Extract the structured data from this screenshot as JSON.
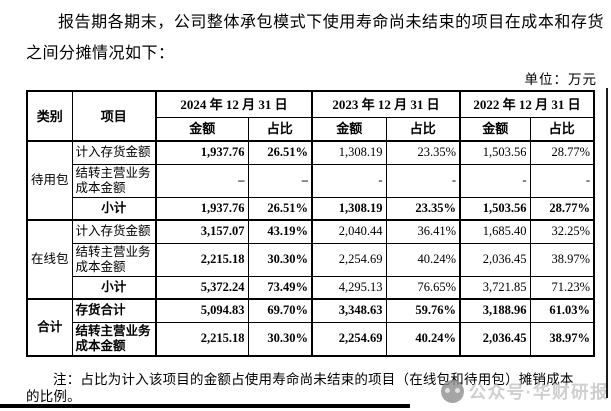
{
  "intro_text": "报告期各期末，公司整体承包模式下使用寿命尚未结束的项目在成本和存货之间分摊情况如下：",
  "unit_label": "单位：万元",
  "note": {
    "line1": "注：占比为计入该项目的金额占使用寿命尚未结束的项目（在线包和待用包）摊销成本",
    "line2": "的比例。"
  },
  "watermark": {
    "label": "公众号·华财研报"
  },
  "table": {
    "col_headers": {
      "category": "类别",
      "item": "项目",
      "amount": "金额",
      "ratio": "占比"
    },
    "date_headers": [
      "2024 年 12 月 31 日",
      "2023 年 12 月 31 日",
      "2022 年 12 月 31 日"
    ],
    "groups": [
      {
        "category": "待用包",
        "category_bold": false,
        "rows": [
          {
            "label": "计入存货金额",
            "bold_label": false,
            "center": false,
            "tall": false,
            "cells": [
              {
                "t": "1,937.76",
                "b": true
              },
              {
                "t": "26.51%",
                "b": true
              },
              {
                "t": "1,308.19",
                "b": false
              },
              {
                "t": "23.35%",
                "b": false
              },
              {
                "t": "1,503.56",
                "b": false
              },
              {
                "t": "28.77%",
                "b": false
              }
            ]
          },
          {
            "label": "结转主营业务成本金额",
            "bold_label": false,
            "center": false,
            "tall": true,
            "cells": [
              {
                "t": "–",
                "b": true
              },
              {
                "t": "–",
                "b": true
              },
              {
                "t": "-",
                "b": false
              },
              {
                "t": "-",
                "b": false
              },
              {
                "t": "-",
                "b": false
              },
              {
                "t": "-",
                "b": false
              }
            ]
          },
          {
            "label": "小计",
            "bold_label": true,
            "center": true,
            "tall": false,
            "cells": [
              {
                "t": "1,937.76",
                "b": true
              },
              {
                "t": "26.51%",
                "b": true
              },
              {
                "t": "1,308.19",
                "b": true
              },
              {
                "t": "23.35%",
                "b": true
              },
              {
                "t": "1,503.56",
                "b": true
              },
              {
                "t": "28.77%",
                "b": true
              }
            ]
          }
        ]
      },
      {
        "category": "在线包",
        "category_bold": false,
        "rows": [
          {
            "label": "计入存货金额",
            "bold_label": false,
            "center": false,
            "tall": false,
            "cells": [
              {
                "t": "3,157.07",
                "b": true
              },
              {
                "t": "43.19%",
                "b": true
              },
              {
                "t": "2,040.44",
                "b": false
              },
              {
                "t": "36.41%",
                "b": false
              },
              {
                "t": "1,685.40",
                "b": false
              },
              {
                "t": "32.25%",
                "b": false
              }
            ]
          },
          {
            "label": "结转主营业务成本金额",
            "bold_label": false,
            "center": false,
            "tall": true,
            "cells": [
              {
                "t": "2,215.18",
                "b": true
              },
              {
                "t": "30.30%",
                "b": true
              },
              {
                "t": "2,254.69",
                "b": false
              },
              {
                "t": "40.24%",
                "b": false
              },
              {
                "t": "2,036.45",
                "b": false
              },
              {
                "t": "38.97%",
                "b": false
              }
            ]
          },
          {
            "label": "小计",
            "bold_label": true,
            "center": true,
            "tall": false,
            "cells": [
              {
                "t": "5,372.24",
                "b": true
              },
              {
                "t": "73.49%",
                "b": true
              },
              {
                "t": "4,295.13",
                "b": false
              },
              {
                "t": "76.65%",
                "b": false
              },
              {
                "t": "3,721.85",
                "b": false
              },
              {
                "t": "71.23%",
                "b": false
              }
            ]
          }
        ]
      },
      {
        "category": "合计",
        "category_bold": true,
        "rows": [
          {
            "label": "存货合计",
            "bold_label": true,
            "center": false,
            "tall": false,
            "cells": [
              {
                "t": "5,094.83",
                "b": true
              },
              {
                "t": "69.70%",
                "b": true
              },
              {
                "t": "3,348.63",
                "b": true
              },
              {
                "t": "59.76%",
                "b": true
              },
              {
                "t": "3,188.96",
                "b": true
              },
              {
                "t": "61.03%",
                "b": true
              }
            ]
          },
          {
            "label": "结转主营业务成本金额",
            "bold_label": true,
            "center": false,
            "tall": true,
            "cells": [
              {
                "t": "2,215.18",
                "b": true
              },
              {
                "t": "30.30%",
                "b": true
              },
              {
                "t": "2,254.69",
                "b": true
              },
              {
                "t": "40.24%",
                "b": true
              },
              {
                "t": "2,036.45",
                "b": true
              },
              {
                "t": "38.97%",
                "b": true
              }
            ]
          }
        ]
      }
    ]
  }
}
